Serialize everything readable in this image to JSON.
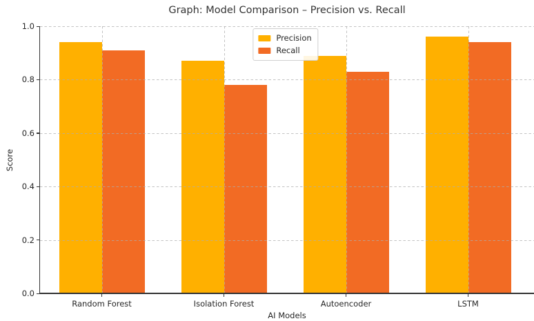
{
  "chart_data": {
    "type": "bar",
    "title": "Graph: Model Comparison – Precision vs. Recall",
    "categories": [
      "Random Forest",
      "Isolation Forest",
      "Autoencoder",
      "LSTM"
    ],
    "series": [
      {
        "name": "Precision",
        "color": "#FFB000",
        "values": [
          0.94,
          0.87,
          0.89,
          0.96
        ]
      },
      {
        "name": "Recall",
        "color": "#F26B24",
        "values": [
          0.91,
          0.78,
          0.83,
          0.94
        ]
      }
    ],
    "xlabel": "AI Models",
    "ylabel": "Score",
    "ylim": [
      0.0,
      1.0
    ],
    "yticks": [
      0.0,
      0.2,
      0.4,
      0.6,
      0.8,
      1.0
    ],
    "ytick_labels": [
      "0.0",
      "0.2",
      "0.4",
      "0.6",
      "0.8",
      "1.0"
    ],
    "grid": {
      "axis": "both",
      "style": "dashed",
      "color": "#ADADAD",
      "above_bars": true
    },
    "legend": {
      "position": "upper center",
      "frame": true
    }
  }
}
